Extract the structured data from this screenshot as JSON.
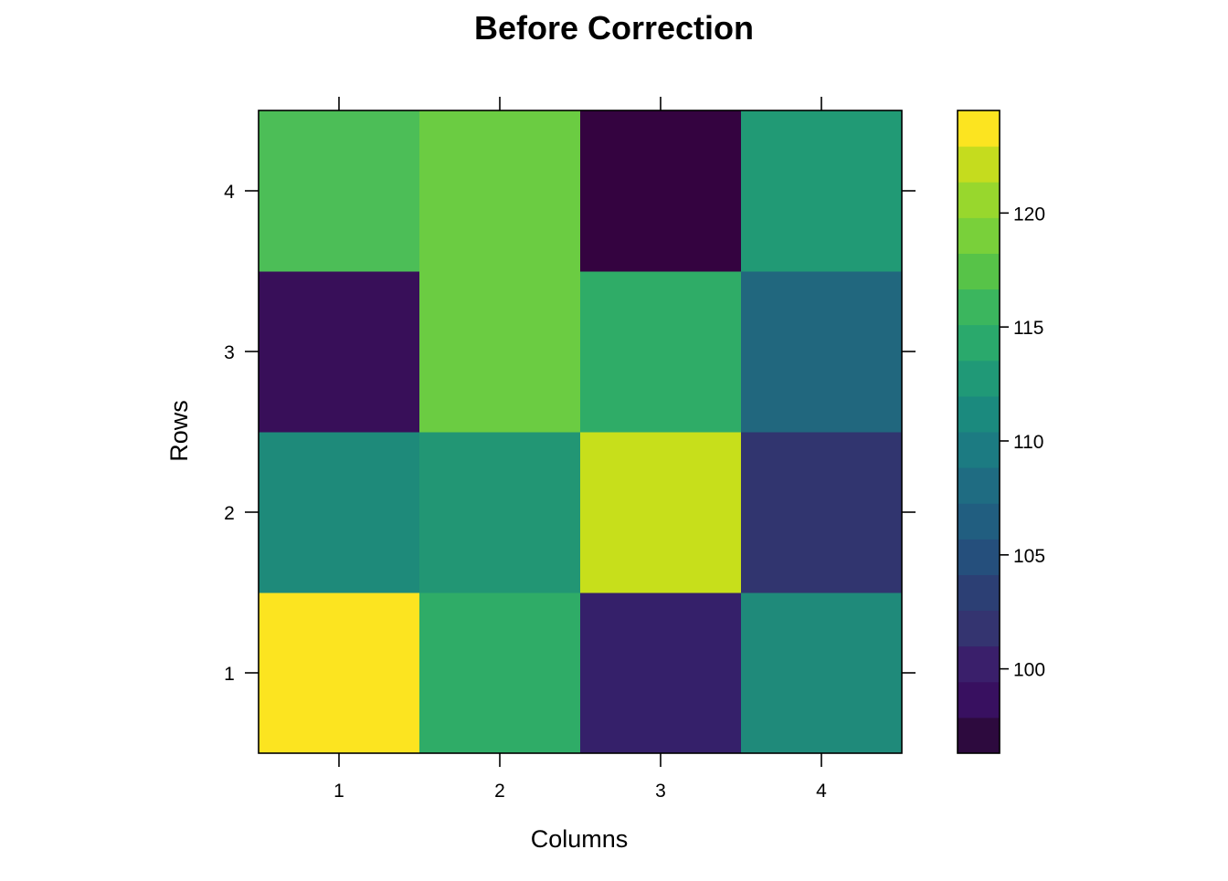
{
  "chart_data": {
    "type": "heatmap",
    "title": "Before Correction",
    "xlabel": "Columns",
    "ylabel": "Rows",
    "x_categories": [
      "1",
      "2",
      "3",
      "4"
    ],
    "y_categories": [
      "1",
      "2",
      "3",
      "4"
    ],
    "values": [
      [
        124,
        115,
        101,
        111
      ],
      [
        111,
        112,
        122,
        103
      ],
      [
        99,
        118,
        115,
        108
      ],
      [
        117,
        118,
        97,
        113
      ]
    ],
    "colorbar": {
      "range": [
        96.3,
        124.5
      ],
      "ticks": [
        100,
        105,
        110,
        115,
        120
      ],
      "tick_labels": [
        "100",
        "105",
        "110",
        "115",
        "120"
      ],
      "colors": [
        "#2d0a3e",
        "#381060",
        "#3a1f6b",
        "#343470",
        "#2c3f74",
        "#254f7c",
        "#215e80",
        "#1f6c82",
        "#1c7b82",
        "#1b8a7e",
        "#209977",
        "#2aa96c",
        "#3bb65e",
        "#57c348",
        "#79d03a",
        "#98d72d",
        "#c5dc1e",
        "#fce420"
      ]
    },
    "grid": false
  },
  "cell_colors": [
    [
      "#fce420",
      "#2fac67",
      "#35206a",
      "#1f8a7a"
    ],
    [
      "#1e8a7a",
      "#229674",
      "#c7df1b",
      "#31356f"
    ],
    [
      "#380f59",
      "#6bcc42",
      "#2fac67",
      "#21677e"
    ],
    [
      "#4cbe57",
      "#6bcc42",
      "#340340",
      "#219a75"
    ]
  ],
  "colors": {
    "frame": "#000000",
    "background": "#ffffff"
  }
}
